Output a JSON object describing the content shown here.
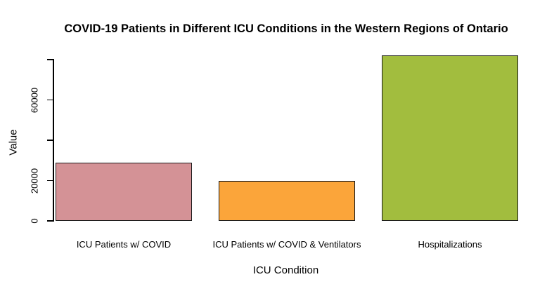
{
  "chart_data": {
    "type": "bar",
    "title": "COVID-19 Patients in Different ICU Conditions in the Western Regions of Ontario",
    "xlabel": "ICU Condition",
    "ylabel": "Value",
    "categories": [
      "ICU Patients w/ COVID",
      "ICU Patients w/ COVID & Ventilators",
      "Hospitalizations"
    ],
    "values": [
      29000,
      20000,
      82000
    ],
    "bar_colors": [
      "#D49296",
      "#FBA53A",
      "#A2BD3E"
    ],
    "bar_border_color": "#1A1A1A",
    "ylim": [
      0,
      83000
    ],
    "yticks": [
      0,
      20000,
      40000,
      60000,
      80000
    ],
    "ytick_labels": [
      "0",
      "20000",
      "",
      "60000",
      ""
    ],
    "grid": false,
    "legend": null,
    "background_color": "#FFFFFF",
    "text_color": "#000000",
    "axis_color": "#000000"
  }
}
